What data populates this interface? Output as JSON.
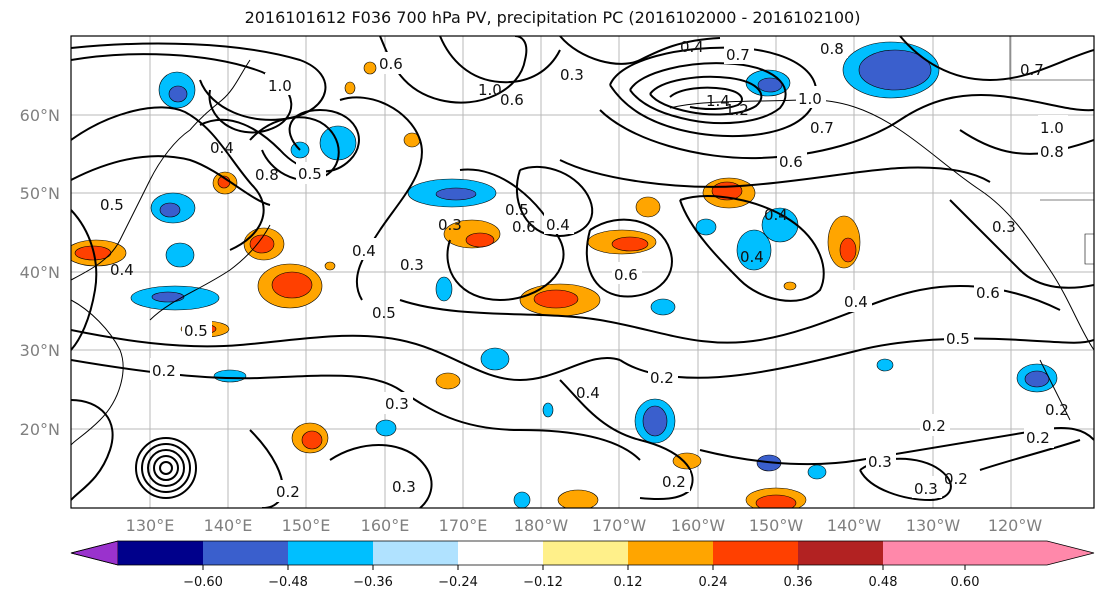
{
  "title": "2016101612 F036 700 hPa PV, precipitation PC (2016102000 - 2016102100)",
  "lat_labels": [
    "60°N",
    "50°N",
    "40°N",
    "30°N",
    "20°N"
  ],
  "lon_labels": [
    "130°E",
    "140°E",
    "150°E",
    "160°E",
    "170°E",
    "180°W",
    "170°W",
    "160°W",
    "150°W",
    "140°W",
    "130°W",
    "120°W"
  ],
  "colorbar": {
    "colors": [
      "#9a32cd",
      "#00008b",
      "#3a5fcd",
      "#00bfff",
      "#b0e2ff",
      "#ffffff",
      "#fff08a",
      "#ffa500",
      "#ff4000",
      "#b22222",
      "#ff88aa"
    ],
    "tick_labels": [
      "−0.60",
      "−0.48",
      "−0.36",
      "−0.24",
      "−0.12",
      "0.12",
      "0.24",
      "0.36",
      "0.48",
      "0.60"
    ]
  },
  "contour_labels": [
    "1.0",
    "0.6",
    "0.3",
    "0.4",
    "0.7",
    "0.8",
    "1.4",
    "1.2",
    "1.0",
    "0.7",
    "0.6",
    "0.7",
    "1.0",
    "0.8",
    "0.5",
    "0.5",
    "0.8",
    "0.6",
    "0.4",
    "0.4",
    "0.6",
    "0.3",
    "0.5",
    "0.4",
    "0.3",
    "0.4",
    "0.5",
    "0.6",
    "0.4",
    "0.5",
    "0.4",
    "0.2",
    "0.4",
    "0.2",
    "0.3",
    "0.2",
    "0.3",
    "0.2",
    "0.2",
    "0.3",
    "0.2",
    "0.2",
    "0.2",
    "0.3",
    "0.6",
    "0.3",
    "0.5",
    "0.4",
    "1.0"
  ]
}
